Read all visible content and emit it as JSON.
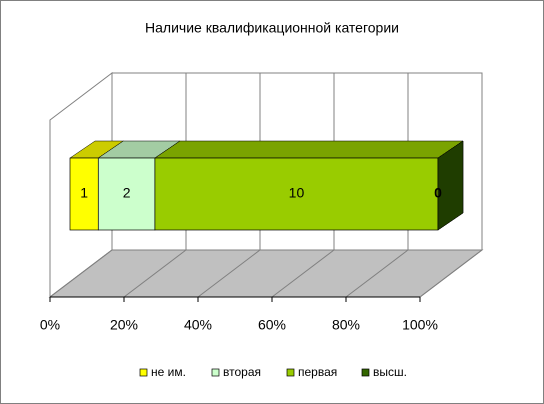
{
  "chart_data": {
    "type": "bar3d",
    "orientation": "horizontal",
    "stack": "percent",
    "title": "Наличие квалификационной категории",
    "series": [
      {
        "name": "не им.",
        "color": "#ffff00",
        "values": [
          1
        ]
      },
      {
        "name": "вторая",
        "color": "#ccffcc",
        "values": [
          2
        ]
      },
      {
        "name": "первая",
        "color": "#99cc00",
        "values": [
          10
        ]
      },
      {
        "name": "высш.",
        "color": "#336600",
        "values": [
          0
        ]
      }
    ],
    "xlim": [
      0,
      100
    ],
    "xticks": [
      {
        "value": 0,
        "label": "0%"
      },
      {
        "value": 20,
        "label": "20%"
      },
      {
        "value": 40,
        "label": "40%"
      },
      {
        "value": 60,
        "label": "60%"
      },
      {
        "value": 80,
        "label": "80%"
      },
      {
        "value": 100,
        "label": "100%"
      }
    ],
    "grid": true,
    "legend": "bottom"
  }
}
